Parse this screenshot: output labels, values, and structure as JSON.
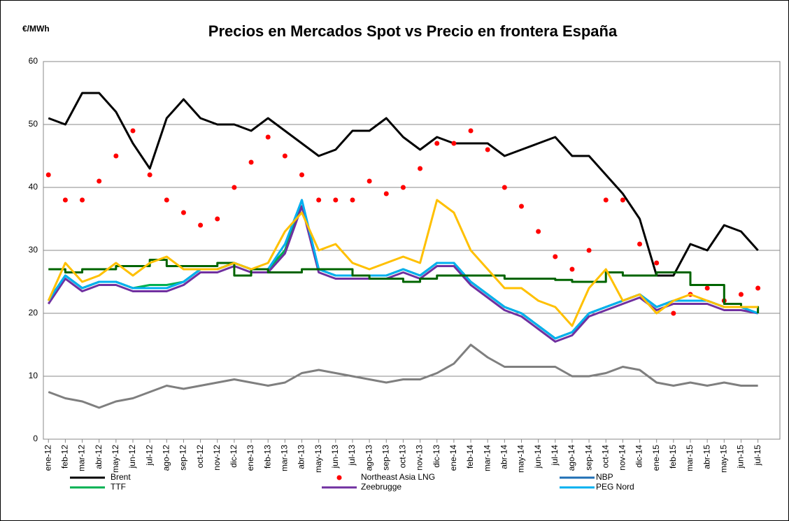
{
  "chart_data": {
    "type": "line",
    "title": "Precios en Mercados Spot vs Precio en frontera España",
    "y_label": "€/MWh",
    "categories": [
      "ene-12",
      "feb-12",
      "mar-12",
      "abr-12",
      "may-12",
      "jun-12",
      "jul-12",
      "ago-12",
      "sep-12",
      "oct-12",
      "nov-12",
      "dic-12",
      "ene-13",
      "feb-13",
      "mar-13",
      "abr-13",
      "may-13",
      "jun-13",
      "jul-13",
      "ago-13",
      "sep-13",
      "oct-13",
      "nov-13",
      "dic-13",
      "ene-14",
      "feb-14",
      "mar-14",
      "abr-14",
      "may-14",
      "jun-14",
      "jul-14",
      "ago-14",
      "sep-14",
      "oct-14",
      "nov-14",
      "dic-14",
      "ene-15",
      "feb-15",
      "mar-15",
      "abr-15",
      "may-15",
      "jun-15",
      "jul-15"
    ],
    "ylim": [
      0,
      60
    ],
    "yticks": [
      0,
      10,
      20,
      30,
      40,
      50,
      60
    ],
    "grid": true,
    "series": [
      {
        "name": "Brent",
        "color": "#000000",
        "values": [
          51,
          50,
          55,
          55,
          52,
          47,
          43,
          51,
          54,
          51,
          50,
          50,
          49,
          51,
          49,
          47,
          45,
          46,
          49,
          49,
          51,
          48,
          46,
          48,
          47,
          47,
          47,
          45,
          46,
          47,
          48,
          45,
          45,
          42,
          39,
          35,
          26,
          26,
          31,
          30,
          34,
          33,
          30
        ]
      },
      {
        "name": "Northeast Asia LNG",
        "color": "#ff0000",
        "marker": "dot",
        "values": [
          42,
          38,
          38,
          41,
          45,
          49,
          42,
          38,
          36,
          34,
          35,
          40,
          44,
          48,
          45,
          42,
          38,
          38,
          38,
          41,
          39,
          40,
          43,
          47,
          47,
          49,
          46,
          40,
          37,
          33,
          29,
          27,
          30,
          38,
          38,
          31,
          28,
          20,
          23,
          24,
          22,
          23,
          24
        ]
      },
      {
        "name": "NBP",
        "color": "#1f6fb5",
        "values": [
          22,
          26,
          24,
          25,
          25,
          24,
          24,
          24,
          25,
          27,
          27,
          28,
          27,
          27,
          30,
          38,
          27,
          26,
          26,
          26,
          26,
          27,
          26,
          28,
          28,
          25,
          23,
          21,
          20,
          18,
          16,
          17,
          20,
          21,
          22,
          23,
          21,
          22,
          22,
          22,
          21,
          21,
          20
        ]
      },
      {
        "name": "TTF",
        "color": "#00b050",
        "values": [
          22,
          26,
          24,
          25,
          25,
          24,
          24.5,
          24.5,
          25,
          27,
          27,
          28,
          27,
          27,
          30,
          37,
          27,
          26,
          26,
          26,
          26,
          27,
          26,
          28,
          28,
          25,
          23,
          21,
          20,
          18,
          16,
          17,
          20,
          21,
          22,
          23,
          21,
          22,
          22,
          22,
          21,
          21,
          20
        ]
      },
      {
        "name": "Zeebrugge",
        "color": "#7030a0",
        "values": [
          21.5,
          25.5,
          23.5,
          24.5,
          24.5,
          23.5,
          23.5,
          23.5,
          24.5,
          26.5,
          26.5,
          27.5,
          26.5,
          26.5,
          29.5,
          37,
          26.5,
          25.5,
          25.5,
          25.5,
          25.5,
          26.5,
          25.5,
          27.5,
          27.5,
          24.5,
          22.5,
          20.5,
          19.5,
          17.5,
          15.5,
          16.5,
          19.5,
          20.5,
          21.5,
          22.5,
          20.5,
          21.5,
          21.5,
          21.5,
          20.5,
          20.5,
          20
        ]
      },
      {
        "name": "PEG Nord",
        "color": "#00b0f0",
        "values": [
          22,
          26,
          24,
          25,
          25,
          24,
          24,
          24,
          25,
          27,
          27,
          28,
          27,
          27,
          31,
          38,
          27,
          26,
          26,
          26,
          26,
          27,
          26,
          28,
          28,
          25,
          23,
          21,
          20,
          18,
          16,
          17,
          20,
          21,
          22,
          23,
          21,
          22,
          22,
          22,
          21,
          21,
          20
        ]
      },
      {
        "color": "#7f7f7f",
        "values": [
          7.5,
          6.5,
          6,
          5,
          6,
          6.5,
          7.5,
          8.5,
          8,
          8.5,
          9,
          9.5,
          9,
          8.5,
          9,
          10.5,
          11,
          10.5,
          10,
          9.5,
          9,
          9.5,
          9.5,
          10.5,
          12,
          15,
          13,
          11.5,
          11.5,
          11.5,
          11.5,
          10,
          10,
          10.5,
          11.5,
          11,
          9,
          8.5,
          9,
          8.5,
          9,
          8.5,
          8.5
        ]
      },
      {
        "color": "#006400",
        "step": true,
        "values": [
          27,
          26.5,
          27,
          27,
          27.5,
          27.5,
          28.5,
          27.5,
          27.5,
          27.5,
          28,
          26,
          27,
          26.5,
          26.5,
          27,
          27,
          27,
          26,
          25.5,
          25.5,
          25,
          25.5,
          26,
          26,
          26,
          26,
          25.5,
          25.5,
          25.5,
          25.3,
          25,
          25,
          26.5,
          26,
          26,
          26.5,
          26.5,
          24.5,
          24.5,
          21.5,
          21,
          20
        ]
      },
      {
        "color": "#ffc000",
        "values": [
          22,
          28,
          25,
          26,
          28,
          26,
          28,
          29,
          27,
          27,
          27,
          28,
          27,
          28,
          33,
          36,
          30,
          31,
          28,
          27,
          28,
          29,
          28,
          38,
          36,
          30,
          27,
          24,
          24,
          22,
          21,
          18,
          24,
          27,
          22,
          23,
          20,
          22,
          23,
          22,
          21,
          21,
          21
        ]
      }
    ]
  }
}
